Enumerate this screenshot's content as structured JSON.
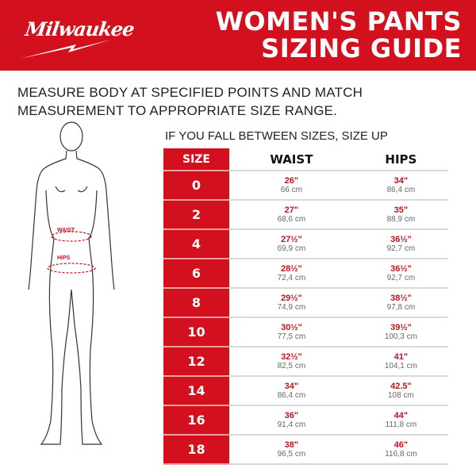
{
  "brand": {
    "logo_text": "Milwaukee"
  },
  "header": {
    "title_line1": "WOMEN'S PANTS",
    "title_line2": "SIZING GUIDE"
  },
  "intro": {
    "line1": "MEASURE BODY AT SPECIFIED POINTS AND MATCH",
    "line2": "MEASUREMENT TO APPROPRIATE SIZE RANGE."
  },
  "note": "IF YOU FALL BETWEEN SIZES, SIZE UP",
  "figure": {
    "waist_label": "WAIST",
    "hips_label": "HIPS"
  },
  "colors": {
    "brand_red": "#d3101e"
  },
  "table": {
    "headers": [
      "SIZE",
      "WAIST",
      "HIPS"
    ],
    "rows": [
      {
        "size": "0",
        "waist_in": "26\"",
        "waist_cm": "66 cm",
        "hips_in": "34\"",
        "hips_cm": "86,4 cm"
      },
      {
        "size": "2",
        "waist_in": "27\"",
        "waist_cm": "68,6 cm",
        "hips_in": "35\"",
        "hips_cm": "88,9 cm"
      },
      {
        "size": "4",
        "waist_in": "27½\"",
        "waist_cm": "69,9 cm",
        "hips_in": "36½\"",
        "hips_cm": "92,7 cm"
      },
      {
        "size": "6",
        "waist_in": "28½\"",
        "waist_cm": "72,4 cm",
        "hips_in": "36½\"",
        "hips_cm": "92,7 cm"
      },
      {
        "size": "8",
        "waist_in": "29½\"",
        "waist_cm": "74,9 cm",
        "hips_in": "38½\"",
        "hips_cm": "97,8 cm"
      },
      {
        "size": "10",
        "waist_in": "30½\"",
        "waist_cm": "77,5 cm",
        "hips_in": "39½\"",
        "hips_cm": "100,3 cm"
      },
      {
        "size": "12",
        "waist_in": "32½\"",
        "waist_cm": "82,5 cm",
        "hips_in": "41\"",
        "hips_cm": "104,1 cm"
      },
      {
        "size": "14",
        "waist_in": "34\"",
        "waist_cm": "86,4 cm",
        "hips_in": "42.5\"",
        "hips_cm": "108 cm"
      },
      {
        "size": "16",
        "waist_in": "36\"",
        "waist_cm": "91,4 cm",
        "hips_in": "44\"",
        "hips_cm": "111,8 cm"
      },
      {
        "size": "18",
        "waist_in": "38\"",
        "waist_cm": "96,5 cm",
        "hips_in": "46\"",
        "hips_cm": "116,8 cm"
      }
    ]
  }
}
